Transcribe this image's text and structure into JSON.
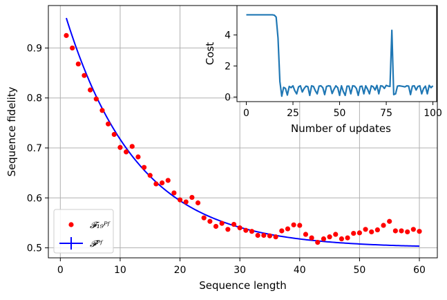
{
  "chart_data": [
    {
      "type": "scatter+line",
      "xlabel": "Sequence length",
      "ylabel": "Sequence fidelity",
      "xlim": [
        -2,
        63
      ],
      "ylim": [
        0.48,
        0.985
      ],
      "x_ticks": [
        0,
        10,
        20,
        30,
        40,
        50,
        60
      ],
      "y_ticks": [
        0.5,
        0.6,
        0.7,
        0.8,
        0.9
      ],
      "y_tick_labels": [
        "0.5",
        "0.6",
        "0.7",
        "0.8",
        "0.9"
      ],
      "grid": true,
      "legend_placement": "lower-left",
      "series": [
        {
          "name": "𝓕₁₉ᴾᶠ",
          "kind": "scatter",
          "color": "#ff0000",
          "x": [
            1,
            2,
            3,
            4,
            5,
            6,
            7,
            8,
            9,
            10,
            11,
            12,
            13,
            14,
            15,
            16,
            17,
            18,
            19,
            20,
            21,
            22,
            23,
            24,
            25,
            26,
            27,
            28,
            29,
            30,
            31,
            32,
            33,
            34,
            35,
            36,
            37,
            38,
            39,
            40,
            41,
            42,
            43,
            44,
            45,
            46,
            47,
            48,
            49,
            50,
            51,
            52,
            53,
            54,
            55,
            56,
            57,
            58,
            59,
            60
          ],
          "y": [
            0.925,
            0.9,
            0.868,
            0.845,
            0.816,
            0.798,
            0.775,
            0.748,
            0.727,
            0.701,
            0.692,
            0.703,
            0.682,
            0.661,
            0.645,
            0.628,
            0.63,
            0.635,
            0.61,
            0.596,
            0.592,
            0.601,
            0.59,
            0.56,
            0.553,
            0.543,
            0.549,
            0.537,
            0.547,
            0.54,
            0.535,
            0.533,
            0.525,
            0.525,
            0.524,
            0.522,
            0.534,
            0.538,
            0.546,
            0.545,
            0.527,
            0.52,
            0.511,
            0.518,
            0.522,
            0.527,
            0.518,
            0.52,
            0.529,
            0.53,
            0.537,
            0.532,
            0.536,
            0.545,
            0.553,
            0.534,
            0.534,
            0.532,
            0.537,
            0.533
          ]
        },
        {
          "name": "𝓕ᴾᶠ",
          "kind": "line",
          "color": "#0000ff",
          "model": {
            "A": 0.5,
            "B": 0.5,
            "p": 0.92
          },
          "x_range": [
            1,
            60
          ]
        }
      ]
    },
    {
      "type": "line",
      "xlabel": "Number of updates",
      "ylabel": "Cost",
      "xlim": [
        -5,
        102
      ],
      "ylim": [
        -0.3,
        5.9
      ],
      "x_ticks": [
        0,
        25,
        50,
        75,
        100
      ],
      "y_ticks": [
        0,
        2,
        4
      ],
      "grid": false,
      "series": [
        {
          "kind": "line",
          "color": "#1f77b4",
          "x": [
            0,
            1,
            2,
            3,
            4,
            5,
            6,
            7,
            8,
            9,
            10,
            11,
            12,
            13,
            14,
            15,
            16,
            17,
            18,
            19,
            20,
            21,
            22,
            23,
            24,
            25,
            26,
            27,
            28,
            29,
            30,
            31,
            32,
            33,
            34,
            35,
            36,
            37,
            38,
            39,
            40,
            41,
            42,
            43,
            44,
            45,
            46,
            47,
            48,
            49,
            50,
            51,
            52,
            53,
            54,
            55,
            56,
            57,
            58,
            59,
            60,
            61,
            62,
            63,
            64,
            65,
            66,
            67,
            68,
            69,
            70,
            71,
            72,
            73,
            74,
            75,
            76,
            77,
            78,
            79,
            80,
            81,
            82,
            83,
            84,
            85,
            86,
            87,
            88,
            89,
            90,
            91,
            92,
            93,
            94,
            95,
            96,
            97,
            98,
            99,
            100
          ],
          "y": [
            5.3,
            5.3,
            5.3,
            5.3,
            5.3,
            5.3,
            5.3,
            5.3,
            5.3,
            5.3,
            5.3,
            5.3,
            5.3,
            5.3,
            5.3,
            5.28,
            5.15,
            3.8,
            1.0,
            0.05,
            0.62,
            0.55,
            0.12,
            0.68,
            0.6,
            0.72,
            0.4,
            0.2,
            0.65,
            0.72,
            0.32,
            0.55,
            0.7,
            0.66,
            0.1,
            0.72,
            0.68,
            0.4,
            0.2,
            0.7,
            0.72,
            0.6,
            0.15,
            0.68,
            0.72,
            0.7,
            0.22,
            0.5,
            0.72,
            0.6,
            0.1,
            0.72,
            0.35,
            0.1,
            0.7,
            0.7,
            0.2,
            0.72,
            0.7,
            0.55,
            0.1,
            0.68,
            0.7,
            0.2,
            0.72,
            0.5,
            0.2,
            0.72,
            0.66,
            0.45,
            0.75,
            0.2,
            0.72,
            0.7,
            0.55,
            0.75,
            0.7,
            0.68,
            4.3,
            0.15,
            0.2,
            0.7,
            0.72,
            0.7,
            0.68,
            0.65,
            0.72,
            0.7,
            0.15,
            0.7,
            0.72,
            0.45,
            0.68,
            0.72,
            0.2,
            0.55,
            0.7,
            0.2,
            0.75,
            0.6,
            0.72
          ]
        }
      ]
    }
  ]
}
